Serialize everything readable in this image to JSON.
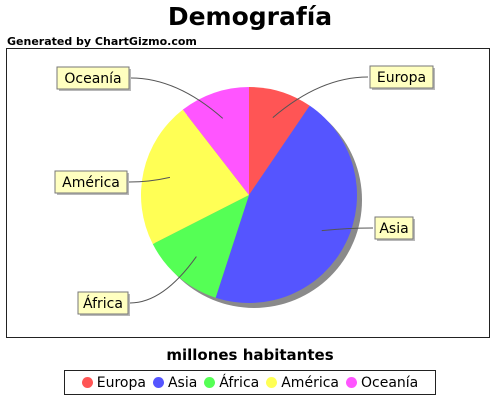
{
  "chart_data": {
    "type": "pie",
    "title": "Demografía",
    "credit": "Generated by ChartGizmo.com",
    "subtitle": "millones habitantes",
    "legend_position": "bottom",
    "categories": [
      "Europa",
      "Asia",
      "África",
      "América",
      "Oceanía"
    ],
    "values": [
      9.5,
      45.5,
      12.5,
      22.0,
      10.5
    ],
    "colors": [
      "#ff5555",
      "#5555ff",
      "#55ff55",
      "#ffff55",
      "#ff55ff"
    ]
  }
}
